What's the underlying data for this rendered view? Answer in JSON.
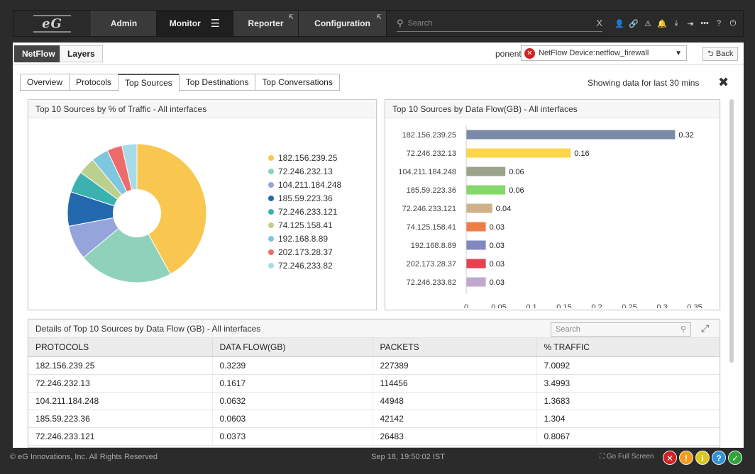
{
  "nav": {
    "logo": "eG",
    "items": [
      {
        "label": "Admin"
      },
      {
        "label": "Monitor"
      },
      {
        "label": "Reporter"
      },
      {
        "label": "Configuration"
      }
    ],
    "search_placeholder": "Search",
    "clear": "X",
    "hamburger": "☰",
    "ext": "⇱",
    "icons": [
      "user-icon",
      "link-icon",
      "alert-icon",
      "bell-icon",
      "download-icon",
      "logout-icon",
      "more-icon",
      "help-icon",
      "power-icon"
    ]
  },
  "subbar": {
    "tabs": [
      "NetFlow",
      "Layers"
    ],
    "component_label": "ponent",
    "component_value": "NetFlow Device:netflow_firewall",
    "back": "Back"
  },
  "tabs": [
    "Overview",
    "Protocols",
    "Top Sources",
    "Top Destinations",
    "Top Conversations"
  ],
  "selected_tab": "Top Sources",
  "showing": "Showing data for last 30 mins",
  "pie_title": "Top 10 Sources by % of Traffic - All interfaces",
  "bar_title": "Top 10 Sources by Data Flow(GB) - All interfaces",
  "table_title": "Details of Top 10 Sources by Data Flow (GB) - All interfaces",
  "table_search_placeholder": "Search",
  "chart_data": [
    {
      "type": "pie",
      "labels": [
        "182.156.239.25",
        "72.246.232.13",
        "104.211.184.248",
        "185.59.223.36",
        "72.246.233.121",
        "74.125.158.41",
        "192.168.8.89",
        "202.173.28.37",
        "72.246.233.82"
      ],
      "values": [
        42,
        22,
        8,
        8,
        5,
        4,
        4,
        3.5,
        3.5
      ],
      "colors": [
        "#f9c74f",
        "#8fd1bb",
        "#95a4db",
        "#2369ad",
        "#3bb2b0",
        "#bcd08d",
        "#7fc6df",
        "#ee6b6b",
        "#a8dbe8"
      ],
      "inner_hole": true
    },
    {
      "type": "bar",
      "orientation": "horizontal",
      "categories": [
        "182.156.239.25",
        "72.246.232.13",
        "104.211.184.248",
        "185.59.223.36",
        "72.246.233.121",
        "74.125.158.41",
        "192.168.8.89",
        "202.173.28.37",
        "72.246.233.82"
      ],
      "values": [
        0.32,
        0.16,
        0.06,
        0.06,
        0.04,
        0.03,
        0.03,
        0.03,
        0.03
      ],
      "colors": [
        "#7b8ba6",
        "#fcd54b",
        "#9ba38a",
        "#85d86a",
        "#cfb28c",
        "#ef7d46",
        "#8387c0",
        "#e7404f",
        "#bfa9cd"
      ],
      "xticks": [
        "0",
        "0.05",
        "0.1",
        "0.15",
        "0.2",
        "0.25",
        "0.3",
        "0.35"
      ],
      "xlim": [
        0,
        0.35
      ]
    }
  ],
  "table": {
    "headers": [
      "PROTOCOLS",
      "DATA FLOW(GB)",
      "PACKETS",
      "% TRAFFIC"
    ],
    "rows": [
      [
        "182.156.239.25",
        "0.3239",
        "227389",
        "7.0092"
      ],
      [
        "72.246.232.13",
        "0.1617",
        "114456",
        "3.4993"
      ],
      [
        "104.211.184.248",
        "0.0632",
        "44948",
        "1.3683"
      ],
      [
        "185.59.223.36",
        "0.0603",
        "42142",
        "1.304"
      ],
      [
        "72.246.233.121",
        "0.0373",
        "26483",
        "0.8067"
      ]
    ]
  },
  "footer": {
    "copyright": "© eG Innovations, Inc. All Rights Reserved",
    "time": "Sep 18, 19:50:02 IST",
    "fullscreen": "Go Full Screen",
    "status": [
      {
        "glyph": "✕",
        "color": "#d32020"
      },
      {
        "glyph": "!",
        "color": "#f29b1d"
      },
      {
        "glyph": "i",
        "color": "#d9c81f"
      },
      {
        "glyph": "?",
        "color": "#2f8fd8"
      },
      {
        "glyph": "✓",
        "color": "#2fa43a"
      }
    ]
  }
}
